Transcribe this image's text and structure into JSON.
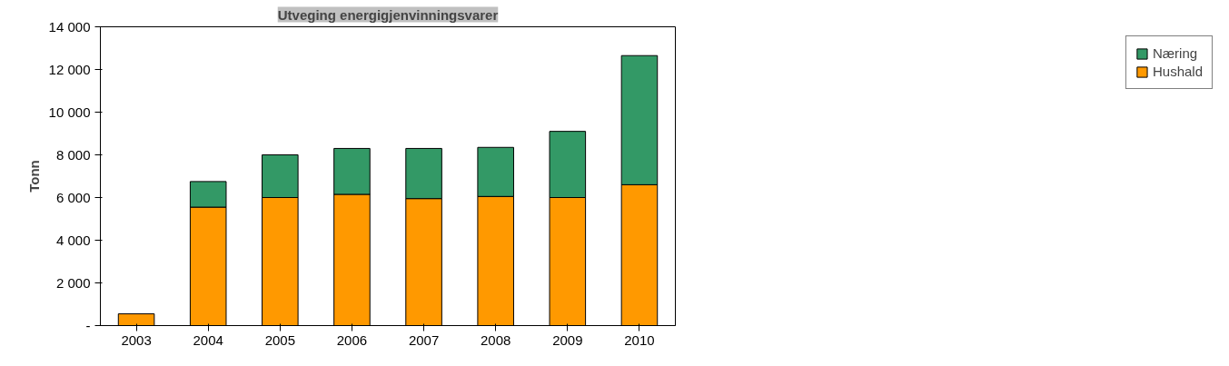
{
  "chart_data": {
    "type": "bar",
    "stacked": true,
    "title": "Utveging energigjenvinningsvarer",
    "ylabel": "Tonn",
    "categories": [
      "2003",
      "2004",
      "2005",
      "2006",
      "2007",
      "2008",
      "2009",
      "2010"
    ],
    "series": [
      {
        "name": "Hushald",
        "color": "#ff9900",
        "values": [
          550,
          5550,
          6000,
          6150,
          5950,
          6050,
          6000,
          6600
        ]
      },
      {
        "name": "Næring",
        "color": "#339966",
        "values": [
          null,
          1200,
          2000,
          2150,
          2350,
          2300,
          3100,
          6050
        ]
      }
    ],
    "ylim": [
      0,
      14000
    ],
    "yticks": [
      {
        "value": 0,
        "label": "-"
      },
      {
        "value": 2000,
        "label": "2 000"
      },
      {
        "value": 4000,
        "label": "4 000"
      },
      {
        "value": 6000,
        "label": "6 000"
      },
      {
        "value": 8000,
        "label": "8 000"
      },
      {
        "value": 10000,
        "label": "10 000"
      },
      {
        "value": 12000,
        "label": "12 000"
      },
      {
        "value": 14000,
        "label": "14 000"
      }
    ],
    "grid": false,
    "legend": "right"
  }
}
